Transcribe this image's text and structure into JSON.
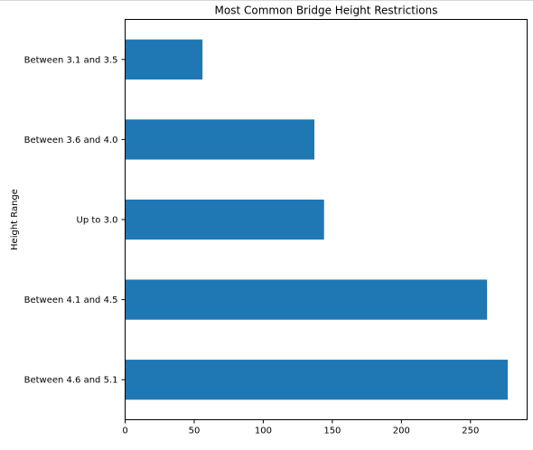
{
  "chart_data": {
    "type": "bar",
    "orientation": "horizontal",
    "title": "Most Common Bridge Height Restrictions",
    "xlabel": "",
    "ylabel": "Height Range",
    "categories": [
      "Between 4.6 and 5.1",
      "Between 4.1 and 4.5",
      "Up to 3.0",
      "Between 3.6 and 4.0",
      "Between 3.1 and 3.5"
    ],
    "values": [
      277,
      262,
      144,
      137,
      56
    ],
    "xlim": [
      0,
      291
    ],
    "xticks": [
      0,
      50,
      100,
      150,
      200,
      250
    ],
    "grid": false,
    "legend": "none",
    "bar_color": "#1f77b4"
  }
}
